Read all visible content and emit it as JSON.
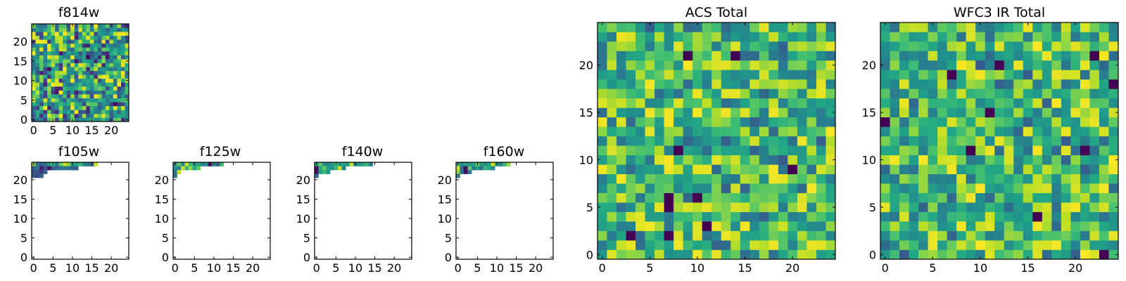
{
  "chart_data": [
    {
      "type": "heatmap",
      "title": "f814w",
      "grid": false,
      "colormap": "viridis",
      "size": 25,
      "xlim": [
        0,
        24
      ],
      "ylim": [
        0,
        24
      ],
      "xticks": [
        0,
        5,
        10,
        15,
        20
      ],
      "yticks": [
        0,
        5,
        10,
        15,
        20
      ],
      "fill": "full",
      "seed": 11,
      "value_range": [
        0.0,
        1.0
      ]
    },
    {
      "type": "heatmap",
      "title": "f105w",
      "grid": false,
      "colormap": "viridis",
      "size": 25,
      "xlim": [
        0,
        24
      ],
      "ylim": [
        0,
        24
      ],
      "xticks": [
        0,
        5,
        10,
        15,
        20
      ],
      "yticks": [
        0,
        5,
        10,
        15,
        20
      ],
      "fill": "partial",
      "rows": [
        {
          "y": 24,
          "values": [
            0.9,
            0.5,
            0.4,
            0.45,
            0.7,
            0.8,
            0.5,
            0.85,
            0.95,
            0.9,
            0.7,
            0.75,
            0.8,
            0.6,
            0.5,
            0.4,
            0.95
          ]
        },
        {
          "y": 23,
          "values": [
            0.4,
            0.5,
            0.1,
            0.3,
            0.05,
            0.35,
            0.4,
            0.45,
            0.5,
            0.45,
            0.4,
            0.35
          ]
        },
        {
          "y": 22,
          "values": [
            0.3,
            0.35,
            0.2,
            0.4
          ]
        },
        {
          "y": 21,
          "values": [
            0.35,
            0.3,
            0.4
          ]
        }
      ]
    },
    {
      "type": "heatmap",
      "title": "f125w",
      "grid": false,
      "colormap": "viridis",
      "size": 25,
      "xlim": [
        0,
        24
      ],
      "ylim": [
        0,
        24
      ],
      "xticks": [
        0,
        5,
        10,
        15,
        20
      ],
      "yticks": [
        0,
        5,
        10,
        15,
        20
      ],
      "fill": "partial",
      "rows": [
        {
          "y": 24,
          "values": [
            0.7,
            0.85,
            0.6,
            0.95,
            0.8,
            0.7,
            0.75,
            0.55,
            0.6,
            0.05,
            0.7,
            0.35,
            0.8
          ]
        },
        {
          "y": 23,
          "values": [
            0.6,
            0.55,
            0.95,
            0.8,
            0.9,
            0.75,
            0.85
          ]
        },
        {
          "y": 22,
          "values": [
            0.5,
            0.95
          ]
        },
        {
          "y": 21,
          "values": [
            0.45
          ]
        }
      ]
    },
    {
      "type": "heatmap",
      "title": "f140w",
      "grid": false,
      "colormap": "viridis",
      "size": 25,
      "xlim": [
        0,
        24
      ],
      "ylim": [
        0,
        24
      ],
      "xticks": [
        0,
        5,
        10,
        15,
        20
      ],
      "yticks": [
        0,
        5,
        10,
        15,
        20
      ],
      "fill": "partial",
      "rows": [
        {
          "y": 24,
          "values": [
            0.75,
            0.85,
            0.6,
            0.55,
            0.7,
            0.8,
            0.65,
            0.75,
            0.7,
            0.95,
            0.6,
            0.7,
            0.75,
            0.8,
            0.5
          ]
        },
        {
          "y": 23,
          "values": [
            0.05,
            0.75,
            0.85,
            0.7,
            0.6,
            0.8,
            0.95,
            0.55
          ]
        },
        {
          "y": 22,
          "values": [
            0.05,
            0.7,
            0.8,
            0.65
          ]
        },
        {
          "y": 21,
          "values": [
            0.45
          ]
        }
      ]
    },
    {
      "type": "heatmap",
      "title": "f160w",
      "grid": false,
      "colormap": "viridis",
      "size": 25,
      "xlim": [
        0,
        24
      ],
      "ylim": [
        0,
        24
      ],
      "xticks": [
        0,
        5,
        10,
        15,
        20
      ],
      "yticks": [
        0,
        5,
        10,
        15,
        20
      ],
      "fill": "partial",
      "rows": [
        {
          "y": 24,
          "values": [
            0.8,
            0.6,
            0.7,
            0.65,
            0.75,
            0.85,
            0.7,
            0.6,
            0.75,
            0.95,
            0.7,
            0.55,
            0.8,
            0.9
          ]
        },
        {
          "y": 23,
          "values": [
            0.95,
            0.4,
            0.05,
            0.85,
            0.5,
            0.7,
            0.45,
            0.8,
            0.75,
            0.6
          ]
        },
        {
          "y": 22,
          "values": [
            0.9,
            0.45,
            0.05,
            0.5
          ]
        },
        {
          "y": 21,
          "values": [
            0.5
          ]
        }
      ]
    },
    {
      "type": "heatmap",
      "title": "ACS Total",
      "grid": false,
      "colormap": "viridis",
      "size": 25,
      "xlim": [
        0,
        24
      ],
      "ylim": [
        0,
        24
      ],
      "xticks": [
        0,
        5,
        10,
        15,
        20
      ],
      "yticks": [
        0,
        5,
        10,
        15,
        20
      ],
      "fill": "full",
      "seed": 29,
      "value_range": [
        0.35,
        1.0
      ],
      "dark_cells": [
        [
          9,
          21
        ],
        [
          14,
          21
        ],
        [
          8,
          11
        ],
        [
          20,
          9
        ],
        [
          7,
          6
        ],
        [
          10,
          6
        ],
        [
          7,
          5
        ],
        [
          11,
          3
        ],
        [
          3,
          2
        ],
        [
          7,
          2
        ]
      ]
    },
    {
      "type": "heatmap",
      "title": "WFC3 IR Total",
      "grid": false,
      "colormap": "viridis",
      "size": 25,
      "xlim": [
        0,
        24
      ],
      "ylim": [
        0,
        24
      ],
      "xticks": [
        0,
        5,
        10,
        15,
        20
      ],
      "yticks": [
        0,
        5,
        10,
        15,
        20
      ],
      "fill": "full",
      "seed": 47,
      "value_range": [
        0.35,
        1.0
      ],
      "dark_cells": [
        [
          22,
          21
        ],
        [
          7,
          19
        ],
        [
          12,
          20
        ],
        [
          24,
          18
        ],
        [
          11,
          15
        ],
        [
          0,
          14
        ],
        [
          9,
          11
        ],
        [
          21,
          11
        ],
        [
          16,
          4
        ],
        [
          23,
          0
        ]
      ]
    }
  ]
}
